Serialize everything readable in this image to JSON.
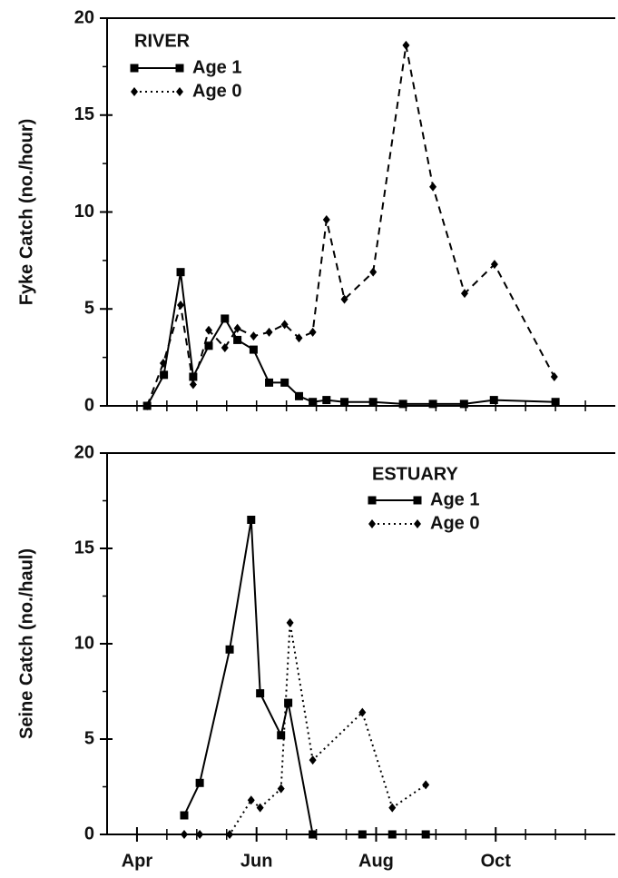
{
  "chart_data": [
    {
      "type": "line",
      "ylabel": "Fyke Catch (no./hour)",
      "legend_title": "RIVER",
      "xlim": [
        3.5,
        12
      ],
      "ylim": [
        0,
        20
      ],
      "yticks": [
        0,
        5,
        10,
        15,
        20
      ],
      "yminorticks": [
        2.5,
        7.5,
        12.5,
        17.5
      ],
      "xminorticks": [
        4,
        4.5,
        5,
        5.5,
        6,
        6.5,
        7,
        7.5,
        8,
        8.5,
        9,
        9.5,
        10,
        10.5,
        11,
        11.5
      ],
      "series": [
        {
          "name": "Age 1",
          "color": "#000000",
          "marker": "square",
          "linestyle": "solid",
          "x": [
            4.17,
            4.45,
            4.73,
            4.94,
            5.2,
            5.47,
            5.68,
            5.95,
            6.21,
            6.47,
            6.71,
            6.94,
            7.17,
            7.47,
            7.95,
            8.45,
            8.95,
            9.47,
            9.97,
            11.0
          ],
          "values": [
            0,
            1.6,
            6.9,
            1.5,
            3.1,
            4.5,
            3.4,
            2.9,
            1.2,
            1.2,
            0.5,
            0.2,
            0.3,
            0.2,
            0.2,
            0.1,
            0.1,
            0.1,
            0.3,
            0.2
          ]
        },
        {
          "name": "Age 0",
          "color": "#000000",
          "marker": "diamond",
          "linestyle": "dashed",
          "x": [
            4.17,
            4.44,
            4.73,
            4.94,
            5.2,
            5.47,
            5.68,
            5.95,
            6.21,
            6.47,
            6.71,
            6.94,
            7.17,
            7.47,
            7.95,
            8.5,
            8.95,
            9.48,
            9.98,
            10.98
          ],
          "values": [
            0,
            2.2,
            5.2,
            1.1,
            3.9,
            3.0,
            4.0,
            3.6,
            3.8,
            4.2,
            3.5,
            3.8,
            9.6,
            5.5,
            6.9,
            18.6,
            11.3,
            5.8,
            7.3,
            1.5
          ]
        }
      ]
    },
    {
      "type": "line",
      "ylabel": "Seine Catch (no./haul)",
      "legend_title": "ESTUARY",
      "xlim": [
        3.5,
        12
      ],
      "ylim": [
        0,
        20
      ],
      "yticks": [
        0,
        5,
        10,
        15,
        20
      ],
      "yminorticks": [
        2.5,
        7.5,
        12.5,
        17.5
      ],
      "xticks": [
        {
          "value": 4,
          "label": "Apr"
        },
        {
          "value": 6,
          "label": "Jun"
        },
        {
          "value": 8,
          "label": "Aug"
        },
        {
          "value": 10,
          "label": "Oct"
        }
      ],
      "xminorticks": [
        4.5,
        5,
        5.5,
        6.5,
        7,
        7.5,
        8.5,
        9,
        9.5,
        10.5,
        11,
        11.5
      ],
      "series": [
        {
          "name": "Age 1",
          "color": "#000000",
          "marker": "square",
          "linestyle": "solid",
          "x": [
            4.79,
            5.05,
            5.55,
            5.91,
            6.06,
            6.41,
            6.53,
            6.94,
            7.77,
            8.27,
            8.83
          ],
          "values": [
            1.0,
            2.7,
            9.7,
            16.5,
            7.4,
            5.2,
            6.9,
            0,
            0,
            0,
            0
          ]
        },
        {
          "name": "Age 0",
          "color": "#000000",
          "marker": "diamond",
          "linestyle": "dotted",
          "x": [
            4.79,
            5.05,
            5.55,
            5.91,
            6.06,
            6.41,
            6.56,
            6.94,
            7.77,
            8.27,
            8.83
          ],
          "values": [
            0,
            0,
            0,
            1.8,
            1.4,
            2.4,
            11.1,
            3.9,
            6.4,
            1.4,
            2.6
          ]
        }
      ]
    }
  ]
}
